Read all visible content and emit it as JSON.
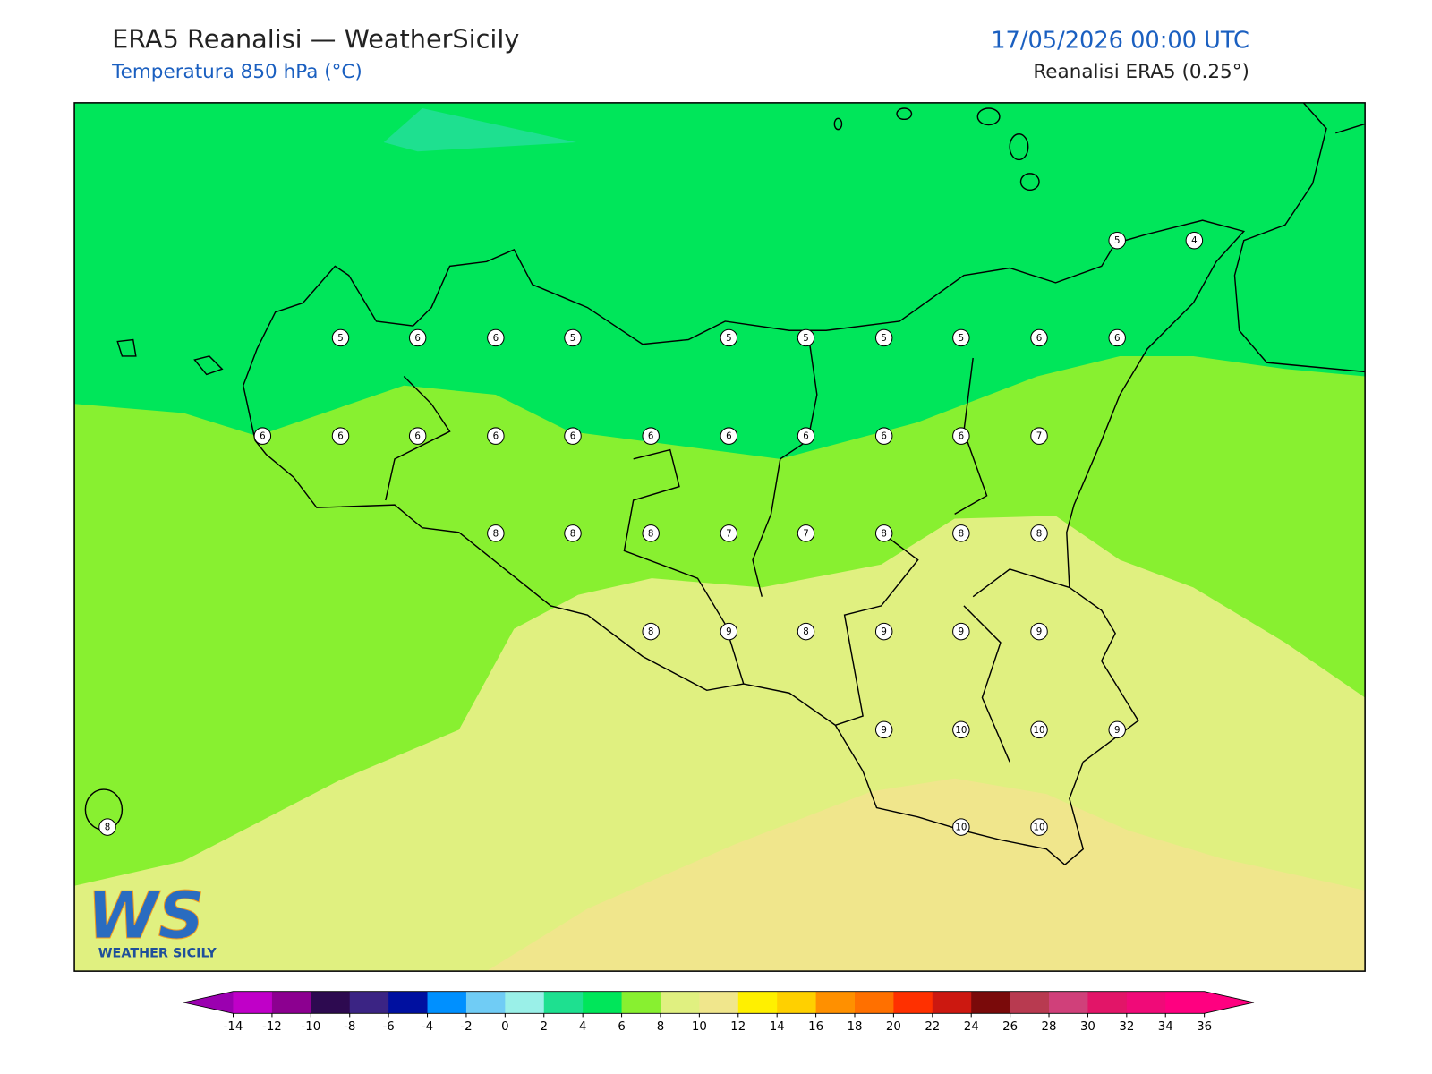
{
  "header": {
    "title": "ERA5 Reanalisi — WeatherSicily",
    "subtitle": "Temperatura 850 hPa (°C)",
    "date": "17/05/2026 00:00 UTC",
    "source": "Reanalisi ERA5 (0.25°)"
  },
  "stations": [
    5,
    4,
    5,
    6,
    6,
    5,
    5,
    5,
    5,
    5,
    6,
    6,
    6,
    6,
    6,
    6,
    6,
    6,
    6,
    6,
    6,
    6,
    7,
    8,
    8,
    8,
    7,
    7,
    8,
    8,
    8,
    8,
    9,
    8,
    9,
    9,
    9,
    9,
    10,
    10,
    9,
    8,
    10,
    10
  ],
  "colorbar": {
    "ticks": [
      -14,
      -12,
      -10,
      -8,
      -6,
      -4,
      -2,
      0,
      2,
      4,
      6,
      8,
      10,
      12,
      14,
      16,
      18,
      20,
      22,
      24,
      26,
      28,
      30,
      32,
      34,
      36
    ],
    "colors": [
      "#c000c8",
      "#8c0090",
      "#2d0a50",
      "#3b2484",
      "#0010a0",
      "#0090ff",
      "#70ccf5",
      "#9af0e8",
      "#1ee090",
      "#00e65a",
      "#88f030",
      "#e0f080",
      "#f0e68c",
      "#fff000",
      "#ffd000",
      "#ff9000",
      "#ff7000",
      "#ff3000",
      "#cc1810",
      "#7a0a0a",
      "#b83a50",
      "#d0407a",
      "#e21568",
      "#f00a78",
      "#ff0080"
    ],
    "under": "#9b00b0",
    "over": "#ff0080"
  },
  "logo": {
    "letters": "WS",
    "name": "WEATHER SICILY"
  }
}
